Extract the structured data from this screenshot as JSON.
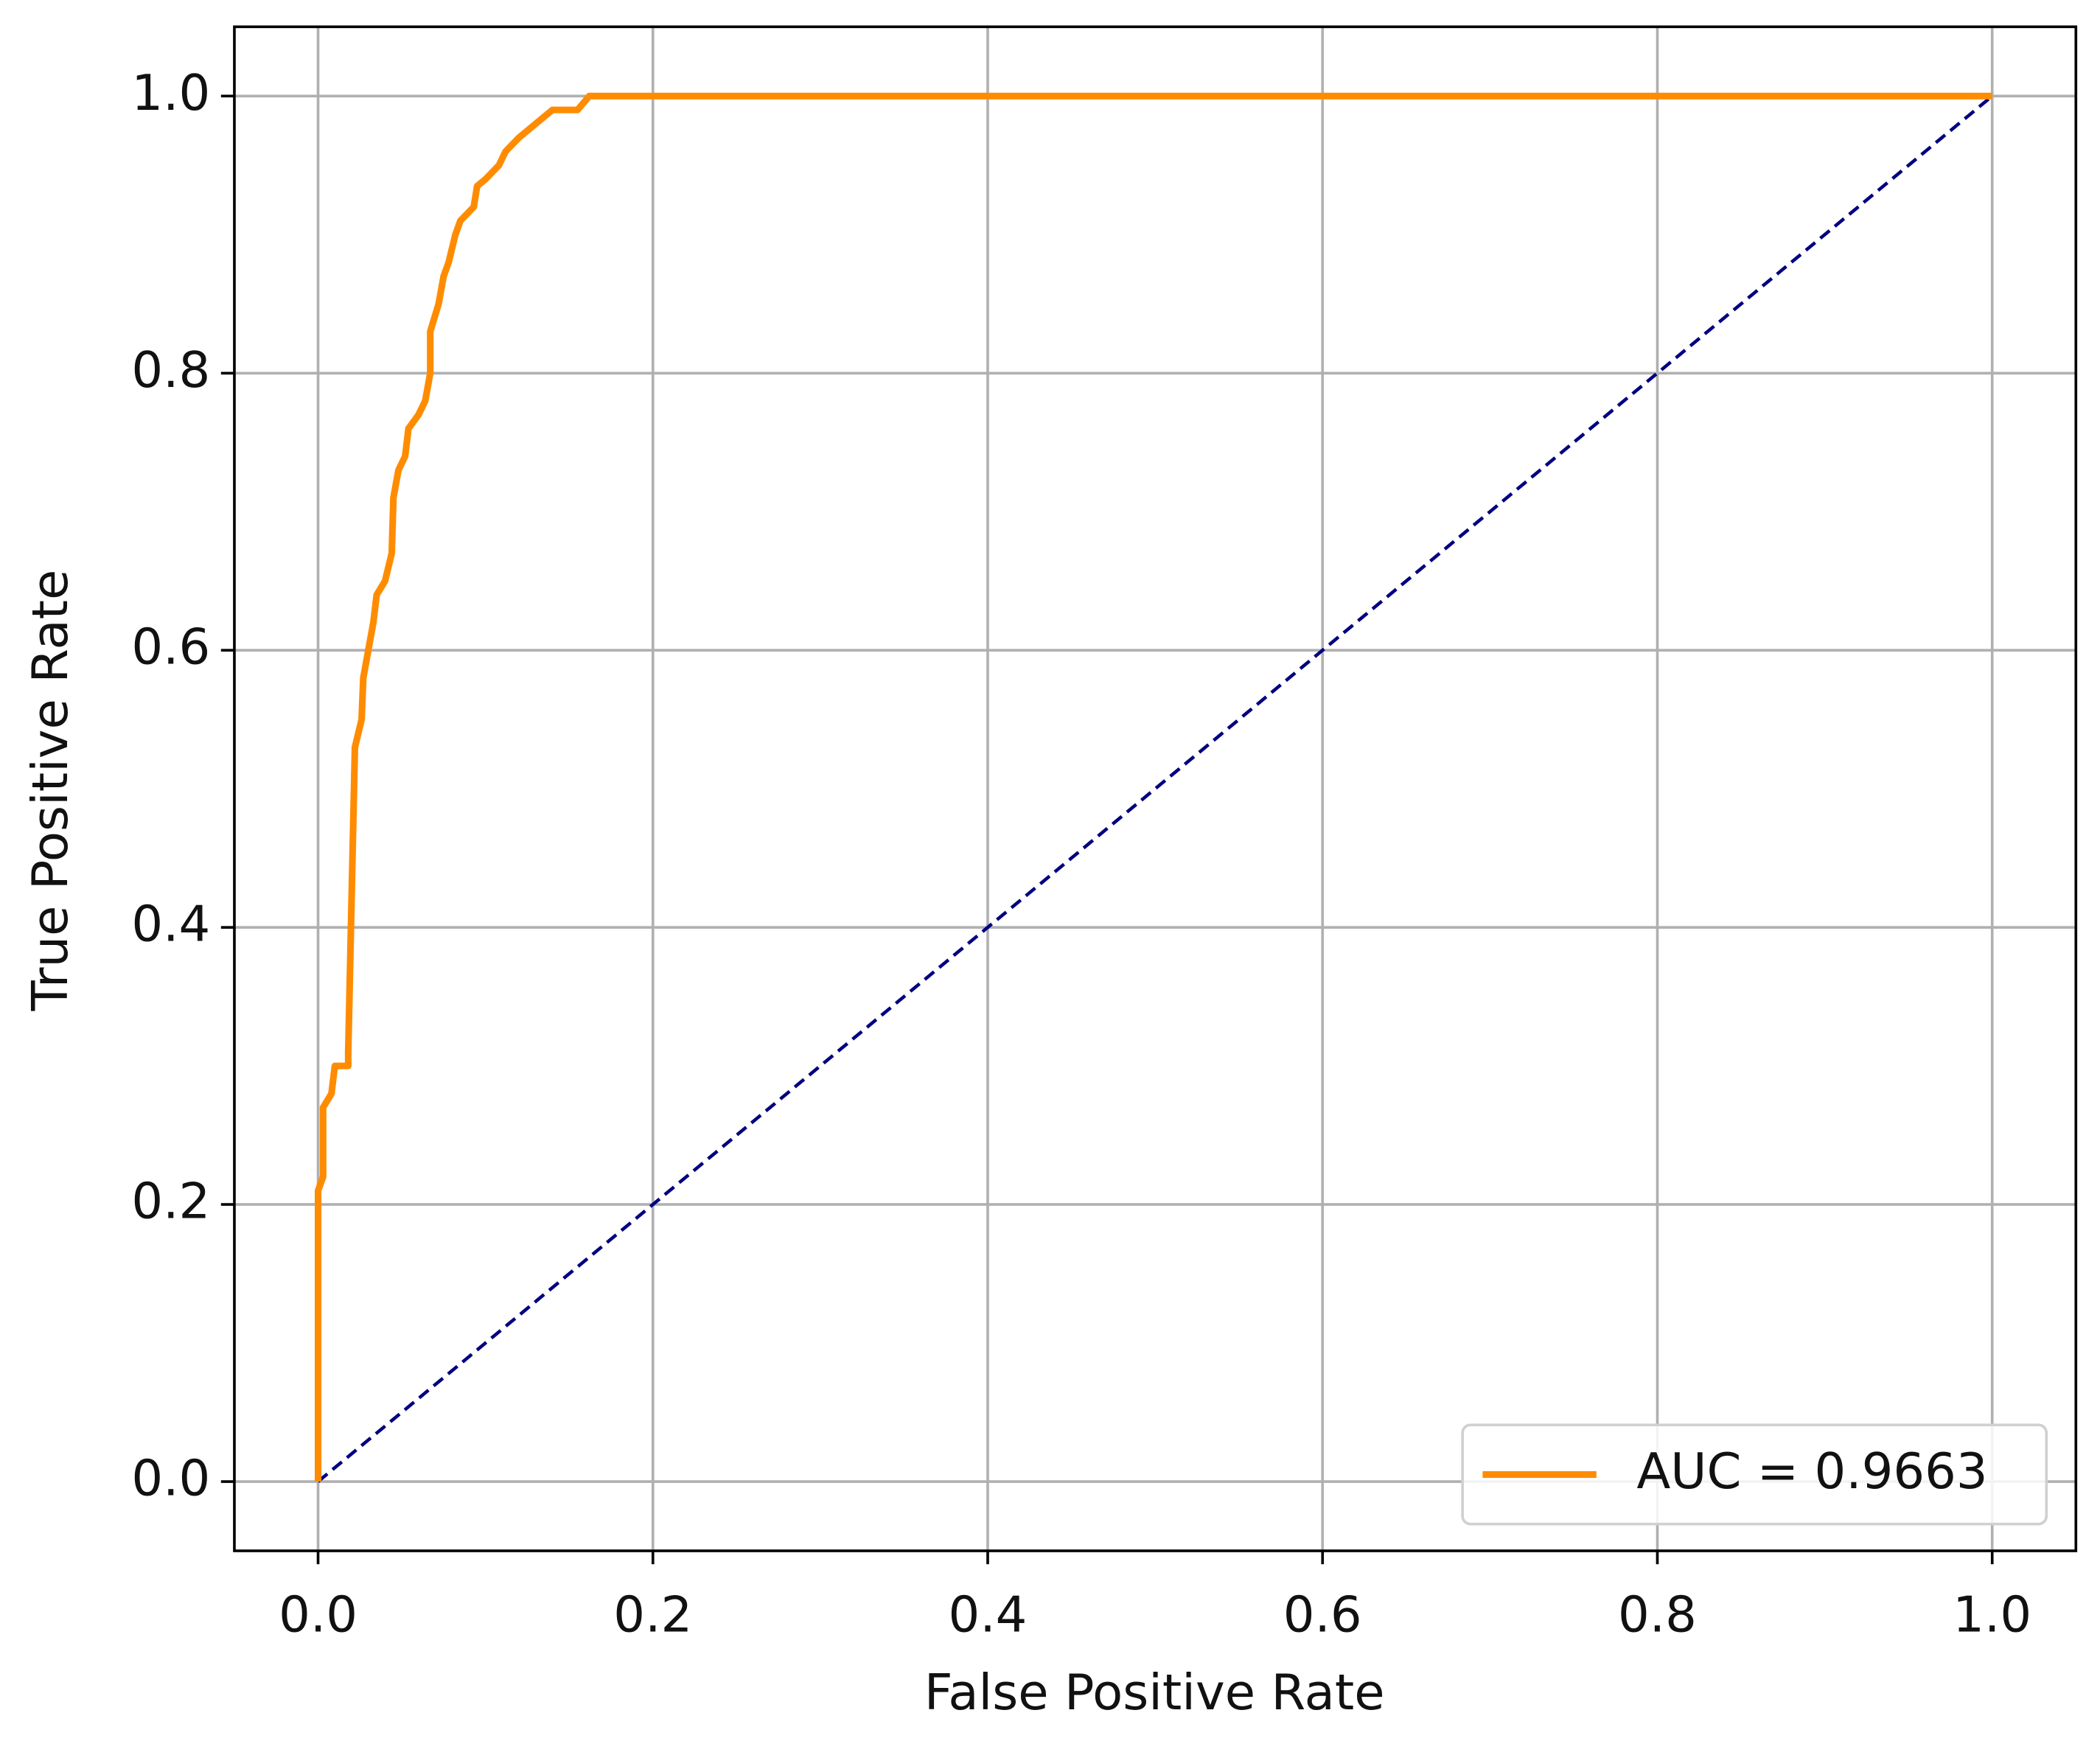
{
  "chart_data": {
    "type": "line",
    "xlabel": "False Positive Rate",
    "ylabel": "True Positive Rate",
    "xlim": [
      -0.05,
      1.05
    ],
    "ylim": [
      -0.05,
      1.05
    ],
    "xticks": [
      {
        "value": 0,
        "label": "0.0"
      },
      0.2,
      0.4,
      0.6,
      0.8,
      {
        "value": 1,
        "label": "1.0"
      }
    ],
    "yticks": [
      {
        "value": 0,
        "label": "0.0"
      },
      0.2,
      0.4,
      0.6,
      0.8,
      {
        "value": 1,
        "label": "1.0"
      }
    ],
    "grid": true,
    "legend": "lower right",
    "series": [
      {
        "name": "AUC = 0.9663",
        "color": "#ff8c00",
        "linestyle": "solid",
        "x": [
          0,
          0,
          0.003,
          0.003,
          0.008,
          0.01,
          0.018,
          0.018,
          0.02,
          0.022,
          0.026,
          0.027,
          0.03,
          0.033,
          0.035,
          0.04,
          0.044,
          0.045,
          0.048,
          0.052,
          0.054,
          0.06,
          0.064,
          0.067,
          0.067,
          0.072,
          0.075,
          0.078,
          0.082,
          0.085,
          0.093,
          0.095,
          0.1,
          0.108,
          0.112,
          0.12,
          0.13,
          0.14,
          0.155,
          0.162,
          1
        ],
        "values": [
          0,
          0.21,
          0.22,
          0.27,
          0.28,
          0.3,
          0.3,
          0.31,
          0.42,
          0.53,
          0.55,
          0.58,
          0.6,
          0.62,
          0.64,
          0.65,
          0.67,
          0.71,
          0.73,
          0.74,
          0.76,
          0.77,
          0.78,
          0.8,
          0.83,
          0.85,
          0.87,
          0.88,
          0.9,
          0.91,
          0.92,
          0.935,
          0.94,
          0.95,
          0.96,
          0.97,
          0.98,
          0.99,
          0.99,
          1,
          1
        ]
      },
      {
        "color": "#000080",
        "linestyle": "dashed",
        "x": [
          0,
          1
        ],
        "values": [
          0,
          1
        ]
      }
    ]
  }
}
